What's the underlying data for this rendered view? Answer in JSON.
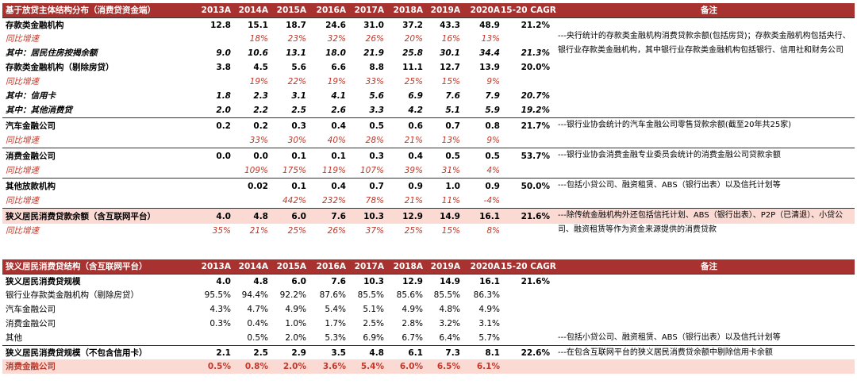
{
  "t1": {
    "title": "基于放贷主体结构分布（消费贷资金端）",
    "years": [
      "2013A",
      "2014A",
      "2015A",
      "2016A",
      "2017A",
      "2018A",
      "2019A",
      "2020A",
      "15-20 CAGR"
    ],
    "remark_header": "备注",
    "rows": [
      {
        "label": "存款类金融机构",
        "v": [
          "12.8",
          "15.1",
          "18.7",
          "24.6",
          "31.0",
          "37.2",
          "43.3",
          "48.9",
          "21.2%"
        ]
      },
      {
        "label": "同比增速",
        "v": [
          "",
          "18%",
          "23%",
          "32%",
          "26%",
          "20%",
          "16%",
          "13%",
          ""
        ]
      },
      {
        "label": "其中：居民住房按揭余额",
        "v": [
          "9.0",
          "10.6",
          "13.1",
          "18.0",
          "21.9",
          "25.8",
          "30.1",
          "34.4",
          "21.3%"
        ]
      },
      {
        "label": "存款类金融机构（剔除房贷）",
        "v": [
          "3.8",
          "4.5",
          "5.6",
          "6.6",
          "8.8",
          "11.1",
          "12.7",
          "13.9",
          "20.0%"
        ]
      },
      {
        "label": "同比增速",
        "v": [
          "",
          "19%",
          "22%",
          "19%",
          "33%",
          "25%",
          "15%",
          "9%",
          ""
        ]
      },
      {
        "label": "其中：信用卡",
        "v": [
          "1.8",
          "2.3",
          "3.1",
          "4.1",
          "5.6",
          "6.9",
          "7.6",
          "7.9",
          "20.7%"
        ]
      },
      {
        "label": "其中：其他消费贷",
        "v": [
          "2.0",
          "2.2",
          "2.5",
          "2.6",
          "3.3",
          "4.2",
          "5.1",
          "5.9",
          "19.2%"
        ]
      },
      {
        "label": "汽车金融公司",
        "v": [
          "0.2",
          "0.2",
          "0.3",
          "0.4",
          "0.5",
          "0.6",
          "0.7",
          "0.8",
          "21.7%"
        ]
      },
      {
        "label": "同比增速",
        "v": [
          "",
          "33%",
          "30%",
          "40%",
          "28%",
          "21%",
          "13%",
          "9%",
          ""
        ]
      },
      {
        "label": "消费金融公司",
        "v": [
          "0.0",
          "0.0",
          "0.1",
          "0.1",
          "0.3",
          "0.4",
          "0.5",
          "0.5",
          "53.7%"
        ]
      },
      {
        "label": "同比增速",
        "v": [
          "",
          "109%",
          "175%",
          "119%",
          "107%",
          "39%",
          "31%",
          "4%",
          ""
        ]
      },
      {
        "label": "其他放款机构",
        "v": [
          "",
          "0.02",
          "0.1",
          "0.4",
          "0.7",
          "0.9",
          "1.0",
          "0.9",
          "50.0%"
        ]
      },
      {
        "label": "同比增速",
        "v": [
          "",
          "",
          "442%",
          "232%",
          "78%",
          "21%",
          "11%",
          "-4%",
          ""
        ]
      },
      {
        "label": "狭义居民消费贷款余额（含互联网平台）",
        "v": [
          "4.0",
          "4.8",
          "6.0",
          "7.6",
          "10.3",
          "12.9",
          "14.9",
          "16.1",
          "21.6%"
        ]
      },
      {
        "label": "同比增速",
        "v": [
          "35%",
          "21%",
          "25%",
          "26%",
          "37%",
          "25%",
          "15%",
          "8%",
          ""
        ]
      }
    ],
    "remarks": {
      "r0": "---央行统计的存款类金融机构消费贷款余额(包括房贷)；存款类金融机构包括央行、银行业存款类金融机构，其中银行业存款类金融机构包括银行、信用社和财务公司",
      "r7": "---银行业协会统计的汽车金融公司零售贷款余额(截至20年共25家)",
      "r9": "---银行业协会消费金融专业委员会统计的消费金融公司贷款余额",
      "r11": "---包括小贷公司、融资租赁、ABS（银行出表）以及信托计划等",
      "r13": "---除传统金融机构外还包括信托计划、ABS（银行出表）、P2P（已清退）、小贷公司、融资租赁等作为资金来源提供的消费贷款"
    }
  },
  "t2": {
    "title": "狭义居民消费贷结构（含互联网平台）",
    "years": [
      "2013A",
      "2014A",
      "2015A",
      "2016A",
      "2017A",
      "2018A",
      "2019A",
      "2020A",
      "15-20 CAGR"
    ],
    "remark_header": "备注",
    "rows": [
      {
        "label": "狭义居民消费贷规模",
        "v": [
          "4.0",
          "4.8",
          "6.0",
          "7.6",
          "10.3",
          "12.9",
          "14.9",
          "16.1",
          "21.6%"
        ]
      },
      {
        "label": "银行业存款类金融机构（剔除房贷）",
        "v": [
          "95.5%",
          "94.4%",
          "92.2%",
          "87.6%",
          "85.5%",
          "85.6%",
          "85.5%",
          "86.3%",
          ""
        ]
      },
      {
        "label": "汽车金融公司",
        "v": [
          "4.3%",
          "4.7%",
          "4.9%",
          "5.4%",
          "5.1%",
          "4.9%",
          "4.8%",
          "4.9%",
          ""
        ]
      },
      {
        "label": "消费金融公司",
        "v": [
          "0.3%",
          "0.4%",
          "1.0%",
          "1.7%",
          "2.5%",
          "2.8%",
          "3.2%",
          "3.1%",
          ""
        ]
      },
      {
        "label": "其他",
        "v": [
          "",
          "0.5%",
          "2.0%",
          "5.3%",
          "6.9%",
          "6.7%",
          "6.4%",
          "5.7%",
          ""
        ]
      },
      {
        "label": "狭义居民消费贷规模（不包含信用卡）",
        "v": [
          "2.1",
          "2.5",
          "2.9",
          "3.5",
          "4.8",
          "6.1",
          "7.3",
          "8.1",
          "22.6%"
        ]
      },
      {
        "label": "消费金融公司",
        "v": [
          "0.5%",
          "0.8%",
          "2.0%",
          "3.6%",
          "5.4%",
          "6.0%",
          "6.5%",
          "6.1%",
          ""
        ]
      }
    ],
    "remarks": {
      "r4": "---包括小贷公司、融资租赁、ABS（银行出表）以及信托计划等",
      "r5": "---在包含互联网平台的狭义居民消费贷余额中剔除信用卡余额"
    }
  }
}
